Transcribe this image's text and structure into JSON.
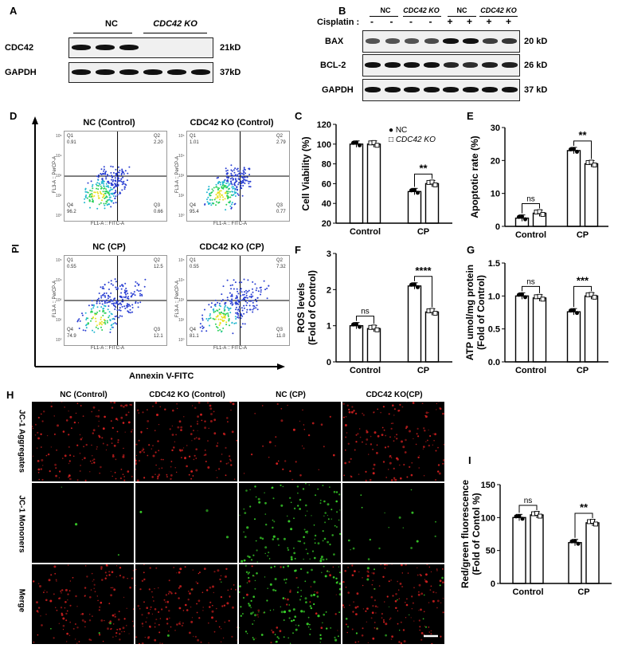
{
  "panel_letters": {
    "A": "A",
    "B": "B",
    "C": "C",
    "D": "D",
    "E": "E",
    "F": "F",
    "G": "G",
    "H": "H",
    "I": "I"
  },
  "panelA": {
    "groups": [
      "NC",
      "CDC42 KO"
    ],
    "rows": [
      {
        "label": "CDC42",
        "size": "21kD",
        "levels": [
          1,
          1,
          1,
          0,
          0,
          0
        ]
      },
      {
        "label": "GAPDH",
        "size": "37kD",
        "levels": [
          1,
          1,
          1,
          1,
          1,
          1
        ]
      }
    ]
  },
  "panelB": {
    "groups": [
      "NC",
      "CDC42 KO",
      "NC",
      "CDC42 KO"
    ],
    "cisplatin_label": "Cisplatin :",
    "cisplatin": [
      "-",
      "-",
      "-",
      "-",
      "+",
      "+",
      "+",
      "+"
    ],
    "rows": [
      {
        "label": "BAX",
        "size": "20 kD",
        "levels": [
          0.55,
          0.55,
          0.55,
          0.6,
          1,
          1,
          0.7,
          0.75
        ]
      },
      {
        "label": "BCL-2",
        "size": "26 kD",
        "levels": [
          1,
          1,
          1,
          1,
          0.85,
          0.8,
          0.9,
          0.9
        ]
      },
      {
        "label": "GAPDH",
        "size": "37 kD",
        "levels": [
          1,
          1,
          1,
          1,
          1,
          1,
          1,
          1
        ]
      }
    ]
  },
  "panelD": {
    "ylabel": "PI",
    "xlabel": "Annexin V-FITC",
    "plots": [
      {
        "title": "NC (Control)",
        "q1": "0.91",
        "q2": "2.20",
        "q3": "0.66",
        "q4": "96.2"
      },
      {
        "title": "CDC42 KO (Control)",
        "q1": "1.01",
        "q2": "2.79",
        "q3": "0.77",
        "q4": "95.4"
      },
      {
        "title": "NC (CP)",
        "q1": "0.55",
        "q2": "12.5",
        "q3": "12.1",
        "q4": "74.9"
      },
      {
        "title": "CDC42 KO (CP)",
        "q1": "0.55",
        "q2": "7.32",
        "q3": "11.0",
        "q4": "81.1"
      }
    ],
    "q_names": [
      "Q1",
      "Q2",
      "Q3",
      "Q4"
    ],
    "axis_x": "FL1-A :: FITC-A",
    "axis_y": "FL3-A :: PerCP-A",
    "ticks": [
      "10⁵",
      "10⁴",
      "10³",
      "10²",
      "10⁰"
    ]
  },
  "chart_data": [
    {
      "panel": "C",
      "type": "bar",
      "categories": [
        "Control",
        "CP"
      ],
      "ylabel": "Cell Viability (%)",
      "ylim": [
        20,
        120
      ],
      "yticks": [
        20,
        40,
        60,
        80,
        100,
        120
      ],
      "series": [
        {
          "name": "NC",
          "values": [
            100,
            52
          ]
        },
        {
          "name": "CDC42 KO",
          "values": [
            100,
            60
          ]
        }
      ],
      "sig": [
        "",
        "**"
      ]
    },
    {
      "panel": "E",
      "type": "bar",
      "categories": [
        "Control",
        "CP"
      ],
      "ylabel": "Apoptotic rate (%)",
      "ylim": [
        0,
        30
      ],
      "yticks": [
        0,
        10,
        20,
        30
      ],
      "series": [
        {
          "values": [
            2.5,
            23
          ]
        },
        {
          "values": [
            4,
            19
          ]
        }
      ],
      "sig": [
        "ns",
        "**"
      ]
    },
    {
      "panel": "F",
      "type": "bar",
      "categories": [
        "Control",
        "CP"
      ],
      "ylabel": "ROS levels (Fold of Control)",
      "ylim": [
        0,
        3
      ],
      "yticks": [
        0,
        1,
        2,
        3
      ],
      "series": [
        {
          "values": [
            1.0,
            2.1
          ]
        },
        {
          "values": [
            0.92,
            1.38
          ]
        }
      ],
      "sig": [
        "ns",
        "****"
      ]
    },
    {
      "panel": "G",
      "type": "bar",
      "categories": [
        "Control",
        "CP"
      ],
      "ylabel": "ATP umol/mg protein (Fold of Control)",
      "ylim": [
        0,
        1.5
      ],
      "yticks": [
        0.0,
        0.5,
        1.0,
        1.5
      ],
      "series": [
        {
          "values": [
            1.0,
            0.76
          ]
        },
        {
          "values": [
            0.97,
            1.0
          ]
        }
      ],
      "sig": [
        "ns",
        "***"
      ]
    },
    {
      "panel": "I",
      "type": "bar",
      "categories": [
        "Control",
        "CP"
      ],
      "ylabel": "Red/green fluorescence (Fold of Contol %)",
      "ylim": [
        0,
        150
      ],
      "yticks": [
        0,
        50,
        100,
        150
      ],
      "series": [
        {
          "values": [
            100,
            62
          ]
        },
        {
          "values": [
            104,
            92
          ]
        }
      ],
      "sig": [
        "ns",
        "**"
      ]
    }
  ],
  "legend": {
    "nc": "NC",
    "ko": "CDC42 KO"
  },
  "panelH": {
    "cols": [
      "NC (Control)",
      "CDC42 KO (Control)",
      "NC (CP)",
      "CDC42 KO(CP)"
    ],
    "rows": [
      "JC-1 Aggregates",
      "JC-1 Mononers",
      "Merge"
    ]
  },
  "colors": {
    "red": "#d42020",
    "green": "#39d22a",
    "blue": "#2a3fd2"
  }
}
